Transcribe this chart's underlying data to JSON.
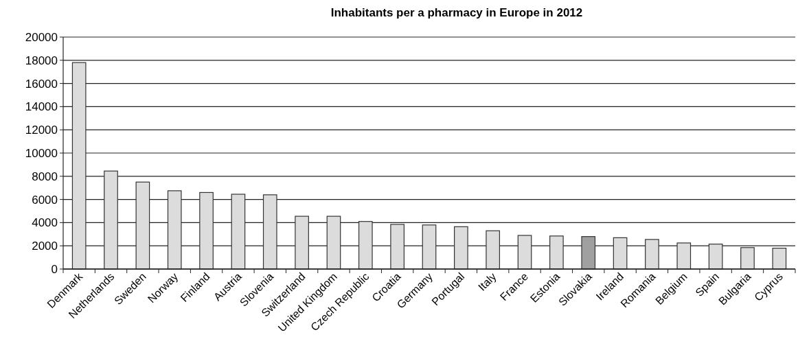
{
  "chart_data": {
    "type": "bar",
    "title": "Inhabitants per a pharmacy in Europe in 2012",
    "categories": [
      "Denmark",
      "Netherlands",
      "Sweden",
      "Norway",
      "Finland",
      "Austria",
      "Slovenia",
      "Switzerland",
      "United Kingdom",
      "Czech Republic",
      "Croatia",
      "Germany",
      "Portugal",
      "Italy",
      "France",
      "Estonia",
      "Slovakia",
      "Ireland",
      "Romania",
      "Belgium",
      "Spain",
      "Bulgaria",
      "Cyprus"
    ],
    "values": [
      17800,
      8450,
      7500,
      6750,
      6600,
      6450,
      6400,
      4550,
      4550,
      4100,
      3850,
      3800,
      3650,
      3300,
      2900,
      2850,
      2800,
      2700,
      2550,
      2250,
      2150,
      1850,
      1800
    ],
    "colors": [
      "#dcdcdc",
      "#dcdcdc",
      "#dcdcdc",
      "#dcdcdc",
      "#dcdcdc",
      "#dcdcdc",
      "#dcdcdc",
      "#dcdcdc",
      "#dcdcdc",
      "#dcdcdc",
      "#dcdcdc",
      "#dcdcdc",
      "#dcdcdc",
      "#dcdcdc",
      "#dcdcdc",
      "#dcdcdc",
      "#a0a0a0",
      "#dcdcdc",
      "#dcdcdc",
      "#dcdcdc",
      "#dcdcdc",
      "#dcdcdc",
      "#dcdcdc"
    ],
    "ylim": [
      0,
      20000
    ],
    "yticks": [
      0,
      2000,
      4000,
      6000,
      8000,
      10000,
      12000,
      14000,
      16000,
      18000,
      20000
    ],
    "grid": "y"
  }
}
